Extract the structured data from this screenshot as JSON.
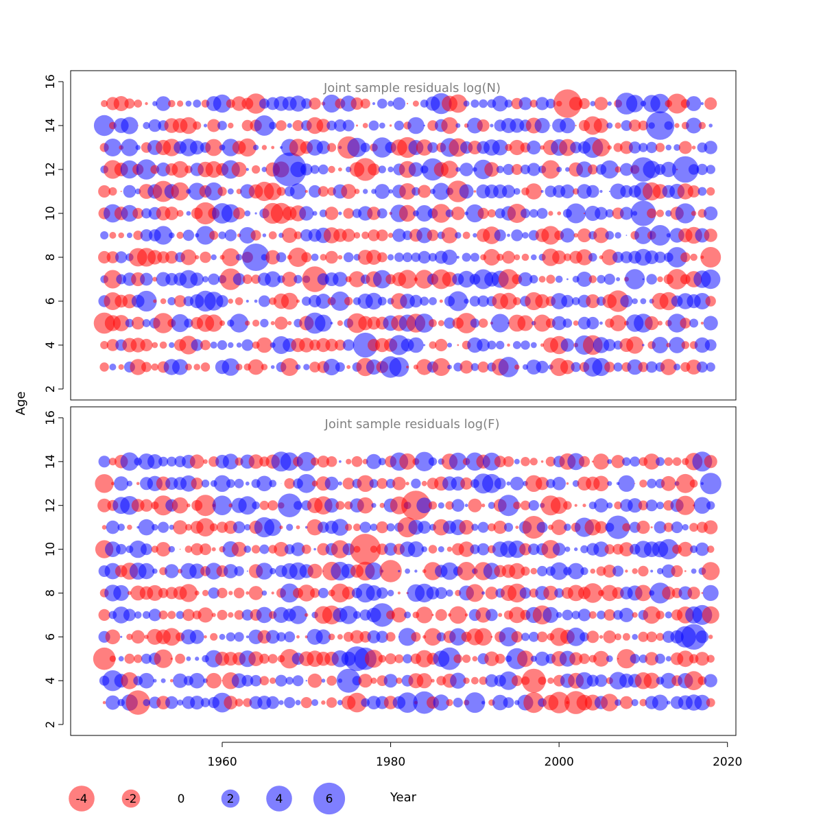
{
  "chart_data": [
    {
      "type": "scatter",
      "title": "Joint sample residuals log(N)",
      "xlabel": "Year",
      "ylabel": "Age",
      "xlim": [
        1942,
        2021
      ],
      "ylim": [
        1.5,
        16.5
      ],
      "yticks": [
        2,
        4,
        6,
        8,
        10,
        12,
        14,
        16
      ],
      "encoding": "bubble area proportional to |residual|; red = negative, blue = positive",
      "years": [
        1946,
        2018
      ],
      "ages": [
        3,
        15
      ],
      "residuals_source": "estimated",
      "seed": 1337
    },
    {
      "type": "scatter",
      "title": "Joint sample residuals log(F)",
      "xlabel": "Year",
      "ylabel": "Age",
      "xlim": [
        1942,
        2021
      ],
      "ylim": [
        1.5,
        16.5
      ],
      "yticks": [
        2,
        4,
        6,
        8,
        10,
        12,
        14,
        16
      ],
      "xticks": [
        1960,
        1980,
        2000,
        2020
      ],
      "encoding": "bubble area proportional to |residual|; red = negative, blue = positive",
      "years": [
        1946,
        2018
      ],
      "ages": [
        3,
        14
      ],
      "residuals_source": "estimated",
      "seed": 4242
    }
  ],
  "shared_axis": {
    "ylabel": "Age",
    "xlabel": "Year"
  },
  "legend": {
    "entries": [
      {
        "label": "-4",
        "value": -4
      },
      {
        "label": "-2",
        "value": -2
      },
      {
        "label": "0",
        "value": 0
      },
      {
        "label": "2",
        "value": 2
      },
      {
        "label": "4",
        "value": 4
      },
      {
        "label": "6",
        "value": 6
      }
    ],
    "title": "Year"
  },
  "colors": {
    "negative": "#ff0000",
    "positive": "#0000ff",
    "title": "#808080",
    "axis": "#000000"
  }
}
